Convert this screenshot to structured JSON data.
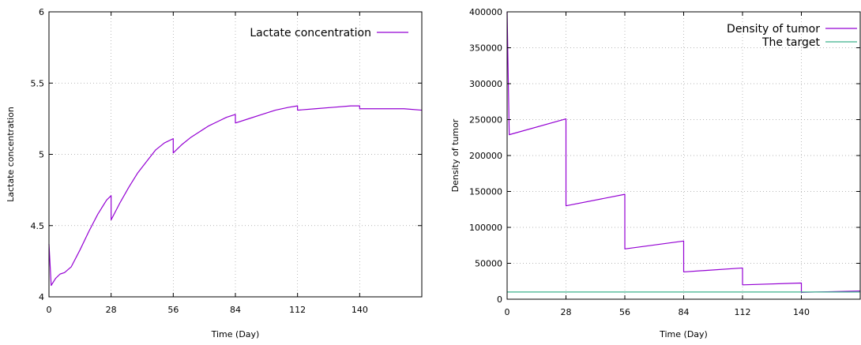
{
  "chart_data": [
    {
      "type": "line",
      "title": "",
      "xlabel": "Time (Day)",
      "ylabel": "Lactate concentration",
      "xlim": [
        0,
        168
      ],
      "ylim": [
        4,
        6
      ],
      "xticks": [
        0,
        28,
        56,
        84,
        112,
        140
      ],
      "xtick_labels": [
        "0",
        "28",
        "56",
        "84",
        "112",
        "140"
      ],
      "yticks": [
        4,
        4.5,
        5,
        5.5,
        6
      ],
      "ytick_labels": [
        "4",
        "4.5",
        "5",
        "5.5",
        "6"
      ],
      "grid": true,
      "legend_position": "top-right",
      "series": [
        {
          "name": "Lactate concentration",
          "color": "#9400d3",
          "x": [
            0,
            1,
            3,
            5,
            7,
            10,
            14,
            18,
            22,
            26,
            28,
            28.01,
            32,
            36,
            40,
            44,
            48,
            52,
            55.99,
            56,
            60,
            64,
            68,
            72,
            76,
            80,
            83.99,
            84,
            90,
            96,
            102,
            108,
            111.99,
            112,
            120,
            128,
            136,
            139.99,
            140,
            150,
            160,
            168
          ],
          "y": [
            4.37,
            4.08,
            4.13,
            4.16,
            4.17,
            4.21,
            4.33,
            4.46,
            4.58,
            4.68,
            4.71,
            4.54,
            4.66,
            4.77,
            4.87,
            4.95,
            5.03,
            5.08,
            5.11,
            5.01,
            5.07,
            5.12,
            5.16,
            5.2,
            5.23,
            5.26,
            5.28,
            5.22,
            5.25,
            5.28,
            5.31,
            5.33,
            5.34,
            5.31,
            5.32,
            5.33,
            5.34,
            5.34,
            5.32,
            5.32,
            5.32,
            5.31
          ]
        }
      ]
    },
    {
      "type": "line",
      "title": "",
      "xlabel": "Time (Day)",
      "ylabel": "Density of tumor",
      "xlim": [
        0,
        168
      ],
      "ylim": [
        0,
        400000
      ],
      "xticks": [
        0,
        28,
        56,
        84,
        112,
        140
      ],
      "xtick_labels": [
        "0",
        "28",
        "56",
        "84",
        "112",
        "140"
      ],
      "yticks": [
        0,
        50000,
        100000,
        150000,
        200000,
        250000,
        300000,
        350000,
        400000
      ],
      "ytick_labels": [
        "0",
        "50000",
        "100000",
        "150000",
        "200000",
        "250000",
        "300000",
        "350000",
        "400000"
      ],
      "grid": true,
      "legend_position": "top-right",
      "series": [
        {
          "name": "Density of tumor",
          "color": "#9400d3",
          "x": [
            0,
            1,
            28,
            28.01,
            56,
            56.01,
            84,
            84.01,
            112,
            112.01,
            140,
            140.01,
            168
          ],
          "y": [
            400000,
            229000,
            251000,
            130000,
            146000,
            70000,
            81000,
            38000,
            43500,
            20000,
            22500,
            9500,
            11500
          ]
        },
        {
          "name": "The target",
          "color": "#3cb08c",
          "x": [
            0,
            168
          ],
          "y": [
            10000,
            10000
          ]
        }
      ]
    }
  ]
}
